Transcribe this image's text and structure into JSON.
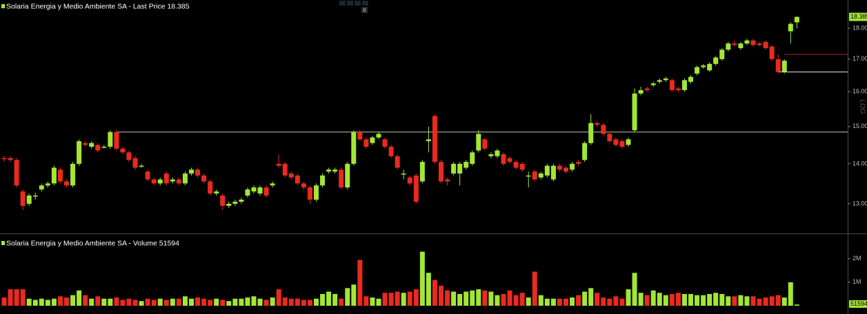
{
  "toolbar_badge": "0",
  "chart_data": [
    {
      "type": "candlestick",
      "title": "Solaria Energia y Medio Ambiente SA - Last Price 18.385",
      "scale_label": "LOG",
      "log_scale": true,
      "up_color": "#a3e635",
      "down_color": "#ea2a1f",
      "ylim": [
        12.32,
        18.97
      ],
      "yticks": [
        {
          "value": 13,
          "label": "13.00"
        },
        {
          "value": 14,
          "label": "14.00"
        },
        {
          "value": 15,
          "label": "15.00"
        },
        {
          "value": 16,
          "label": "16.00"
        },
        {
          "value": 17,
          "label": "17.00"
        },
        {
          "value": 18,
          "label": "18.00"
        }
      ],
      "hlines": [
        {
          "value": 14.85,
          "color": "#c9c9b0",
          "start": 18
        },
        {
          "value": 17.15,
          "color": "#b3261e",
          "start": 125
        },
        {
          "value": 16.6,
          "color": "#e6e6e6",
          "start": 124
        }
      ],
      "open": [
        14.15,
        14.15,
        14.1,
        13.3,
        13.0,
        13.2,
        13.35,
        13.45,
        13.5,
        13.85,
        13.55,
        13.45,
        14.0,
        14.55,
        14.45,
        14.5,
        14.45,
        14.45,
        14.85,
        14.4,
        14.3,
        14.15,
        13.95,
        13.8,
        13.6,
        13.5,
        13.75,
        13.55,
        13.6,
        13.5,
        13.75,
        13.85,
        13.7,
        13.55,
        13.25,
        13.2,
        12.95,
        13.0,
        13.05,
        13.2,
        13.3,
        13.25,
        13.4,
        13.45,
        14.0,
        14.0,
        13.75,
        13.7,
        13.5,
        13.4,
        13.1,
        13.45,
        13.8,
        13.8,
        13.85,
        13.4,
        14.0,
        14.85,
        14.65,
        14.55,
        14.7,
        14.65,
        14.45,
        14.2,
        13.75,
        13.65,
        13.7,
        13.55,
        14.6,
        15.3,
        14.05,
        13.6,
        13.75,
        13.75,
        13.9,
        14.0,
        14.35,
        14.65,
        14.2,
        14.2,
        14.25,
        14.15,
        14.05,
        14.0,
        13.7,
        13.8,
        13.65,
        13.7,
        13.6,
        13.95,
        13.9,
        13.85,
        14.05,
        14.1,
        14.55,
        15.1,
        15.05,
        14.8,
        14.65,
        14.6,
        14.5,
        14.9,
        15.95,
        16.1,
        16.2,
        16.3,
        16.35,
        16.35,
        16.1,
        16.05,
        16.3,
        16.55,
        16.75,
        16.65,
        16.85,
        17.0,
        17.3,
        17.5,
        17.35,
        17.5,
        17.6,
        17.5,
        17.55,
        17.4,
        17.0,
        16.6,
        17.9,
        18.2
      ],
      "high": [
        14.22,
        14.2,
        14.15,
        13.35,
        13.25,
        13.27,
        13.5,
        13.55,
        13.95,
        13.9,
        13.6,
        14.05,
        14.65,
        14.6,
        14.6,
        14.55,
        14.5,
        14.9,
        14.9,
        14.45,
        14.35,
        14.2,
        14.0,
        13.85,
        13.65,
        13.65,
        13.8,
        13.65,
        13.65,
        13.8,
        13.9,
        13.9,
        13.75,
        13.6,
        13.35,
        13.25,
        13.05,
        13.1,
        13.15,
        13.4,
        13.45,
        13.45,
        13.45,
        13.55,
        14.25,
        14.05,
        13.8,
        13.75,
        13.55,
        13.45,
        13.5,
        13.75,
        13.9,
        13.9,
        13.9,
        14.05,
        14.9,
        14.9,
        14.7,
        14.75,
        14.85,
        14.7,
        14.5,
        14.25,
        13.85,
        13.7,
        13.75,
        14.1,
        15.0,
        15.35,
        14.1,
        13.65,
        14.05,
        14.05,
        14.1,
        14.35,
        14.9,
        14.7,
        14.3,
        14.4,
        14.3,
        14.2,
        14.1,
        14.05,
        13.8,
        13.85,
        13.8,
        14.0,
        14.0,
        14.0,
        13.95,
        14.05,
        14.1,
        14.6,
        15.35,
        15.15,
        15.1,
        14.85,
        14.7,
        14.65,
        14.7,
        16.1,
        16.15,
        16.15,
        16.3,
        16.4,
        16.45,
        16.4,
        16.15,
        16.4,
        16.5,
        16.8,
        16.85,
        16.9,
        17.1,
        17.35,
        17.55,
        17.6,
        17.55,
        17.65,
        17.65,
        17.55,
        17.6,
        17.45,
        17.15,
        17.0,
        18.2,
        18.4
      ],
      "low": [
        14.05,
        14.05,
        13.4,
        12.85,
        12.95,
        13.1,
        13.3,
        13.4,
        13.45,
        13.5,
        13.4,
        13.4,
        13.95,
        14.45,
        14.4,
        14.3,
        14.4,
        14.4,
        14.35,
        14.25,
        14.05,
        13.85,
        13.9,
        13.55,
        13.45,
        13.45,
        13.45,
        13.5,
        13.45,
        13.45,
        13.7,
        13.65,
        13.5,
        13.2,
        13.2,
        12.85,
        12.9,
        12.95,
        13.0,
        13.15,
        13.25,
        13.2,
        13.15,
        13.4,
        13.9,
        13.65,
        13.6,
        13.45,
        13.35,
        13.0,
        13.05,
        13.4,
        13.75,
        13.75,
        13.35,
        13.35,
        13.95,
        14.6,
        14.4,
        14.5,
        14.65,
        14.4,
        14.15,
        13.85,
        13.6,
        13.45,
        13.0,
        13.5,
        14.3,
        14.0,
        13.5,
        13.45,
        13.7,
        13.45,
        13.85,
        13.95,
        14.3,
        14.35,
        14.15,
        14.15,
        13.95,
        14.0,
        13.85,
        13.8,
        13.4,
        13.55,
        13.6,
        13.65,
        13.55,
        13.8,
        13.75,
        13.8,
        13.95,
        14.05,
        14.5,
        15.0,
        14.75,
        14.55,
        14.45,
        14.4,
        14.45,
        14.85,
        15.9,
        16.0,
        16.15,
        16.25,
        16.3,
        16.0,
        16.0,
        16.0,
        16.25,
        16.5,
        16.7,
        16.6,
        16.8,
        16.95,
        17.25,
        17.4,
        17.3,
        17.45,
        17.4,
        17.4,
        17.3,
        16.95,
        16.55,
        16.55,
        17.5,
        18.0
      ],
      "close": [
        14.12,
        14.1,
        13.45,
        12.95,
        13.2,
        13.2,
        13.45,
        13.5,
        13.9,
        13.55,
        13.45,
        14.0,
        14.6,
        14.5,
        14.55,
        14.35,
        14.45,
        14.85,
        14.4,
        14.3,
        14.1,
        13.9,
        13.95,
        13.6,
        13.5,
        13.6,
        13.5,
        13.6,
        13.5,
        13.75,
        13.85,
        13.7,
        13.55,
        13.25,
        13.3,
        12.95,
        13.0,
        13.05,
        13.1,
        13.35,
        13.4,
        13.4,
        13.2,
        13.5,
        13.95,
        13.7,
        13.65,
        13.5,
        13.4,
        13.1,
        13.45,
        13.7,
        13.85,
        13.85,
        13.4,
        14.0,
        14.85,
        14.65,
        14.45,
        14.7,
        14.8,
        14.45,
        14.2,
        13.9,
        13.75,
        13.5,
        13.05,
        14.05,
        14.65,
        14.05,
        13.55,
        13.55,
        14.0,
        14.0,
        14.05,
        14.3,
        14.8,
        14.4,
        14.25,
        14.35,
        14.0,
        14.05,
        13.9,
        13.85,
        13.7,
        13.6,
        13.75,
        13.95,
        13.95,
        13.85,
        13.8,
        14.0,
        14.0,
        14.55,
        15.1,
        15.05,
        14.8,
        14.6,
        14.5,
        14.45,
        14.65,
        15.95,
        16.05,
        16.05,
        16.25,
        16.35,
        16.4,
        16.05,
        16.05,
        16.35,
        16.45,
        16.75,
        16.8,
        16.85,
        17.05,
        17.3,
        17.5,
        17.45,
        17.5,
        17.6,
        17.45,
        17.45,
        17.35,
        17.0,
        16.6,
        16.95,
        18.15,
        18.385
      ]
    },
    {
      "type": "volume",
      "title": "Solaria Energia y Medio Ambiente SA - Volume 51594",
      "ylim": [
        0,
        2900000
      ],
      "yticks": [
        {
          "value": 1000000,
          "label": "1M"
        },
        {
          "value": 2000000,
          "label": "2M"
        }
      ],
      "values": [
        350000,
        700000,
        700000,
        700000,
        300000,
        250000,
        300000,
        250000,
        300000,
        400000,
        350000,
        450000,
        650000,
        450000,
        300000,
        400000,
        300000,
        300000,
        350000,
        250000,
        300000,
        250000,
        200000,
        300000,
        250000,
        300000,
        250000,
        300000,
        300000,
        400000,
        300000,
        350000,
        300000,
        250000,
        300000,
        250000,
        200000,
        300000,
        300000,
        350000,
        400000,
        300000,
        250000,
        350000,
        700000,
        350000,
        300000,
        300000,
        250000,
        250000,
        300000,
        500000,
        600000,
        500000,
        300000,
        750000,
        900000,
        1950000,
        400000,
        350000,
        300000,
        550000,
        550000,
        600000,
        550000,
        600000,
        700000,
        2300000,
        1400000,
        1100000,
        850000,
        650000,
        600000,
        500000,
        600000,
        650000,
        700000,
        650000,
        600000,
        450000,
        500000,
        650000,
        450000,
        550000,
        350000,
        1450000,
        450000,
        300000,
        300000,
        300000,
        300000,
        350000,
        450000,
        600000,
        750000,
        550000,
        350000,
        300000,
        400000,
        300000,
        700000,
        1400000,
        550000,
        450000,
        650000,
        550000,
        450000,
        500000,
        550000,
        500000,
        500000,
        450000,
        450000,
        500000,
        550000,
        500000,
        400000,
        400000,
        450000,
        400000,
        400000,
        300000,
        350000,
        400000,
        450000,
        350000,
        1000000,
        51594
      ]
    }
  ]
}
